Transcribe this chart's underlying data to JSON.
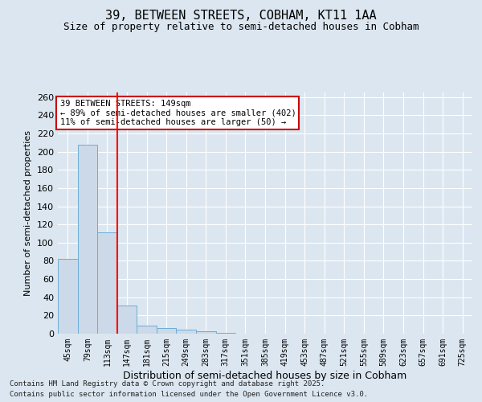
{
  "title1": "39, BETWEEN STREETS, COBHAM, KT11 1AA",
  "title2": "Size of property relative to semi-detached houses in Cobham",
  "xlabel": "Distribution of semi-detached houses by size in Cobham",
  "ylabel": "Number of semi-detached properties",
  "categories": [
    "45sqm",
    "79sqm",
    "113sqm",
    "147sqm",
    "181sqm",
    "215sqm",
    "249sqm",
    "283sqm",
    "317sqm",
    "351sqm",
    "385sqm",
    "419sqm",
    "453sqm",
    "487sqm",
    "521sqm",
    "555sqm",
    "589sqm",
    "623sqm",
    "657sqm",
    "691sqm",
    "725sqm"
  ],
  "values": [
    82,
    208,
    111,
    31,
    9,
    6,
    4,
    3,
    1,
    0,
    0,
    0,
    0,
    0,
    0,
    0,
    0,
    0,
    0,
    0,
    0
  ],
  "bar_color": "#ccd9e8",
  "bar_edge_color": "#6baed6",
  "red_line_index": 3,
  "annotation_text_line1": "39 BETWEEN STREETS: 149sqm",
  "annotation_text_line2": "← 89% of semi-detached houses are smaller (402)",
  "annotation_text_line3": "11% of semi-detached houses are larger (50) →",
  "ylim": [
    0,
    265
  ],
  "yticks": [
    0,
    20,
    40,
    60,
    80,
    100,
    120,
    140,
    160,
    180,
    200,
    220,
    240,
    260
  ],
  "footnote1": "Contains HM Land Registry data © Crown copyright and database right 2025.",
  "footnote2": "Contains public sector information licensed under the Open Government Licence v3.0.",
  "bg_color": "#dce6f0",
  "plot_bg_color": "#dce6f0",
  "grid_color": "#ffffff",
  "annotation_box_edge_color": "#cc0000",
  "title1_fontsize": 11,
  "title2_fontsize": 9,
  "xlabel_fontsize": 9,
  "ylabel_fontsize": 8,
  "xtick_fontsize": 7,
  "ytick_fontsize": 8,
  "annot_fontsize": 7.5
}
